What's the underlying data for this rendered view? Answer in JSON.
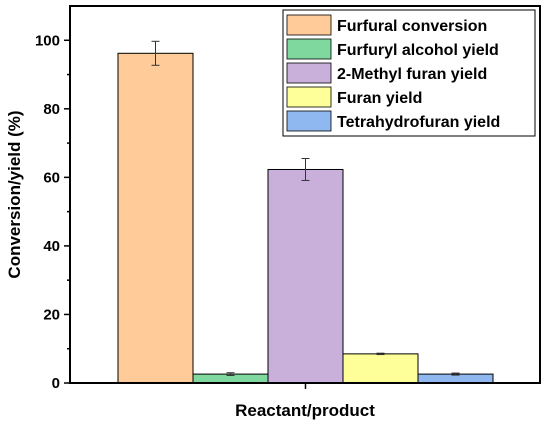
{
  "chart_data": {
    "type": "bar",
    "xlabel": "Reactant/product",
    "ylabel": "Conversion/yield (%)",
    "ylim": [
      0,
      110
    ],
    "yticks": [
      0,
      20,
      40,
      60,
      80,
      100
    ],
    "grid": false,
    "legend_position": "top-right",
    "series": [
      {
        "name": "Furfural conversion",
        "value": 96.2,
        "error": 3.5,
        "color": "#FFCC99"
      },
      {
        "name": "Furfuryl alcohol yield",
        "value": 2.6,
        "error": 0.4,
        "color": "#7FD99E"
      },
      {
        "name": "2-Methyl furan yield",
        "value": 62.3,
        "error": 3.2,
        "color": "#C9B0DB"
      },
      {
        "name": "Furan yield",
        "value": 8.5,
        "error": 0.2,
        "color": "#FFFF99"
      },
      {
        "name": "Tetrahydrofuran yield",
        "value": 2.6,
        "error": 0.3,
        "color": "#8FB8F0"
      }
    ]
  }
}
